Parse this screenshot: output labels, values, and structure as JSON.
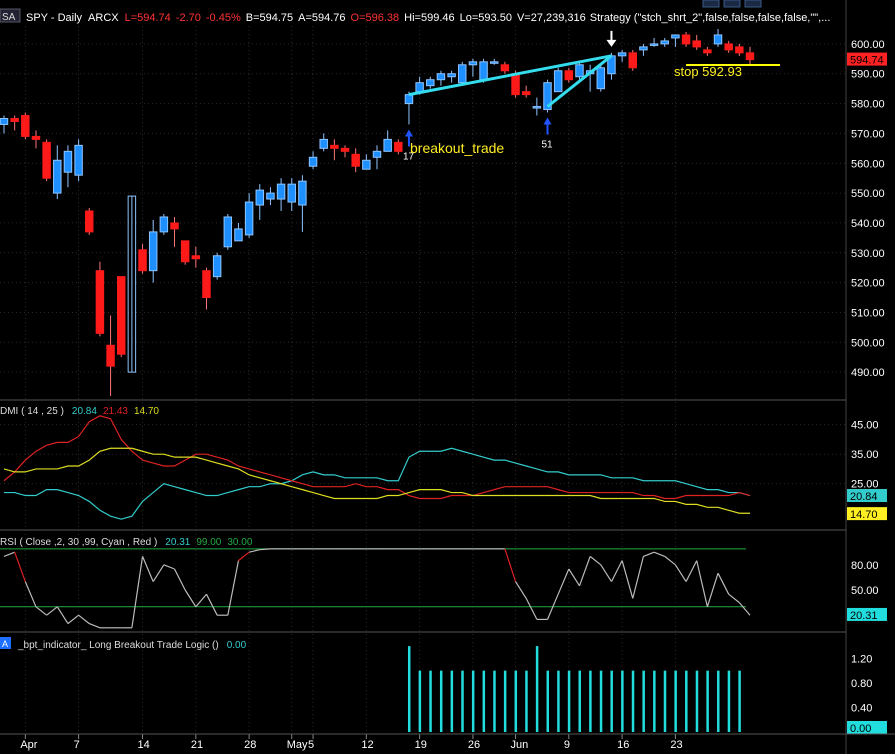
{
  "header": {
    "badge": "SA",
    "symbol": "SPY - Daily",
    "exchange": "ARCX",
    "last": "L=594.74",
    "change": "-2.70",
    "change_pct": "-0.45%",
    "bid": "B=594.75",
    "ask": "A=594.76",
    "open": "O=596.38",
    "high": "Hi=599.46",
    "low": "Lo=593.50",
    "volume": "V=27,239,316",
    "strategy": "Strategy (\"stch_shrt_2\",false,false,false,false,\"\",..."
  },
  "colors": {
    "background": "#000000",
    "up_candle": "#1e8fff",
    "down_candle": "#ff1a1a",
    "grid": "#2a2a2a",
    "axis_text": "#ffffff",
    "trendline": "#33ddee",
    "stop_line": "#ffff00",
    "dmi_plus": "#33cccc",
    "dmi_minus": "#dd2222",
    "adx": "#dddd22",
    "rsi": "#bbbbbb",
    "rsi_high": "#dd2222",
    "rsi_level_high": "#22aa44",
    "rsi_level_low": "#22aa44",
    "histogram": "#22dddd"
  },
  "annotations": {
    "breakout_label": "breakout_trade",
    "stop_label": "stop 592.93",
    "entry1_label": "17",
    "entry2_label": "51"
  },
  "price_axis": {
    "ticks": [
      "600.00",
      "590.00",
      "580.00",
      "570.00",
      "560.00",
      "550.00",
      "540.00",
      "530.00",
      "520.00",
      "510.00",
      "500.00",
      "490.00"
    ],
    "last_badge": "594.74"
  },
  "dmi_panel": {
    "title": "DMI ( 14 , 25 )",
    "v1": "20.84",
    "v2": "21.43",
    "v3": "14.70",
    "ticks": [
      "45.00",
      "35.00",
      "25.00"
    ],
    "badge1": "20.84",
    "badge2": "14.70"
  },
  "rsi_panel": {
    "title": "RSI ( Close ,2, 30 ,99, Cyan , Red )",
    "v1": "20.31",
    "v2": "99.00",
    "v3": "30.00",
    "ticks": [
      "80.00",
      "50.00"
    ],
    "badge": "20.31"
  },
  "bpt_panel": {
    "badge": "A",
    "title": "_bpt_indicator_ Long Breakout Trade Logic ()",
    "value": "0.00",
    "ticks": [
      "1.20",
      "0.80",
      "0.40"
    ],
    "badge_value": "0.00"
  },
  "x_axis": {
    "ticks": [
      "Apr",
      "7",
      "14",
      "21",
      "28",
      "May",
      "5",
      "12",
      "19",
      "26",
      "Jun",
      "9",
      "16",
      "23"
    ]
  },
  "chart_data": {
    "type": "candlestick",
    "ylim": [
      482,
      606
    ],
    "candles": [
      {
        "o": 573,
        "h": 576,
        "l": 570,
        "c": 575
      },
      {
        "o": 575,
        "h": 576,
        "l": 571,
        "c": 574
      },
      {
        "o": 576,
        "h": 577,
        "l": 568,
        "c": 569
      },
      {
        "o": 569,
        "h": 571,
        "l": 565,
        "c": 568
      },
      {
        "o": 567,
        "h": 568,
        "l": 554,
        "c": 555
      },
      {
        "o": 550,
        "h": 566,
        "l": 548,
        "c": 561
      },
      {
        "o": 557,
        "h": 566,
        "l": 552,
        "c": 564
      },
      {
        "o": 556,
        "h": 568,
        "l": 554,
        "c": 566
      },
      {
        "o": 544,
        "h": 545,
        "l": 536,
        "c": 537
      },
      {
        "o": 524,
        "h": 527,
        "l": 502,
        "c": 503
      },
      {
        "o": 499,
        "h": 509,
        "l": 482,
        "c": 492
      },
      {
        "o": 522,
        "h": 522,
        "l": 495,
        "c": 496
      },
      {
        "o": 490,
        "h": 549,
        "l": 490,
        "c": 549
      },
      {
        "o": 531,
        "h": 533,
        "l": 523,
        "c": 524
      },
      {
        "o": 524,
        "h": 541,
        "l": 520,
        "c": 537
      },
      {
        "o": 537,
        "h": 543,
        "l": 536,
        "c": 542
      },
      {
        "o": 540,
        "h": 542,
        "l": 532,
        "c": 538
      },
      {
        "o": 534,
        "h": 534,
        "l": 526,
        "c": 527
      },
      {
        "o": 529,
        "h": 532,
        "l": 525,
        "c": 528
      },
      {
        "o": 524,
        "h": 525,
        "l": 511,
        "c": 515
      },
      {
        "o": 522,
        "h": 530,
        "l": 521,
        "c": 529
      },
      {
        "o": 532,
        "h": 543,
        "l": 531,
        "c": 542
      },
      {
        "o": 534,
        "h": 540,
        "l": 534,
        "c": 538
      },
      {
        "o": 536,
        "h": 550,
        "l": 535,
        "c": 547
      },
      {
        "o": 546,
        "h": 553,
        "l": 541,
        "c": 551
      },
      {
        "o": 548,
        "h": 552,
        "l": 546,
        "c": 550
      },
      {
        "o": 548,
        "h": 555,
        "l": 544,
        "c": 553
      },
      {
        "o": 547,
        "h": 555,
        "l": 544,
        "c": 553
      },
      {
        "o": 546,
        "h": 556,
        "l": 537,
        "c": 554
      },
      {
        "o": 559,
        "h": 564,
        "l": 558,
        "c": 562
      },
      {
        "o": 565,
        "h": 570,
        "l": 564,
        "c": 568
      },
      {
        "o": 566,
        "h": 568,
        "l": 561,
        "c": 565
      },
      {
        "o": 565,
        "h": 566,
        "l": 562,
        "c": 564
      },
      {
        "o": 563,
        "h": 565,
        "l": 557,
        "c": 559
      },
      {
        "o": 558,
        "h": 563,
        "l": 558,
        "c": 561
      },
      {
        "o": 562,
        "h": 566,
        "l": 558,
        "c": 564
      },
      {
        "o": 564,
        "h": 571,
        "l": 564,
        "c": 568
      },
      {
        "o": 567,
        "h": 568,
        "l": 563,
        "c": 564
      },
      {
        "o": 580,
        "h": 584,
        "l": 573,
        "c": 583
      },
      {
        "o": 584,
        "h": 589,
        "l": 583,
        "c": 587
      },
      {
        "o": 586,
        "h": 589,
        "l": 585,
        "c": 588
      },
      {
        "o": 588,
        "h": 591,
        "l": 586,
        "c": 590
      },
      {
        "o": 589,
        "h": 591,
        "l": 587,
        "c": 590
      },
      {
        "o": 587,
        "h": 594,
        "l": 586,
        "c": 593
      },
      {
        "o": 593,
        "h": 595,
        "l": 589,
        "c": 594
      },
      {
        "o": 588,
        "h": 595,
        "l": 587,
        "c": 594
      },
      {
        "o": 594,
        "h": 595,
        "l": 593,
        "c": 594
      },
      {
        "o": 593,
        "h": 594,
        "l": 590,
        "c": 591
      },
      {
        "o": 590,
        "h": 591,
        "l": 582,
        "c": 583
      },
      {
        "o": 584,
        "h": 586,
        "l": 582,
        "c": 583
      },
      {
        "o": 579,
        "h": 582,
        "l": 576,
        "c": 579
      },
      {
        "o": 578,
        "h": 588,
        "l": 577,
        "c": 587
      },
      {
        "o": 584,
        "h": 592,
        "l": 584,
        "c": 591
      },
      {
        "o": 591,
        "h": 592,
        "l": 587,
        "c": 588
      },
      {
        "o": 589,
        "h": 594,
        "l": 588,
        "c": 593
      },
      {
        "o": 590,
        "h": 593,
        "l": 584,
        "c": 591
      },
      {
        "o": 585,
        "h": 593,
        "l": 584,
        "c": 592
      },
      {
        "o": 590,
        "h": 597,
        "l": 588,
        "c": 596
      },
      {
        "o": 596,
        "h": 598,
        "l": 594,
        "c": 597
      },
      {
        "o": 597,
        "h": 598,
        "l": 591,
        "c": 592
      },
      {
        "o": 598,
        "h": 600,
        "l": 596,
        "c": 599
      },
      {
        "o": 600,
        "h": 602,
        "l": 599,
        "c": 600
      },
      {
        "o": 600,
        "h": 602,
        "l": 599,
        "c": 601
      },
      {
        "o": 602,
        "h": 603,
        "l": 599,
        "c": 603
      },
      {
        "o": 603,
        "h": 604,
        "l": 599,
        "c": 600
      },
      {
        "o": 601,
        "h": 603,
        "l": 598,
        "c": 599
      },
      {
        "o": 598,
        "h": 599,
        "l": 596,
        "c": 597
      },
      {
        "o": 600,
        "h": 605,
        "l": 599,
        "c": 603
      },
      {
        "o": 600,
        "h": 601,
        "l": 597,
        "c": 598
      },
      {
        "o": 599,
        "h": 600,
        "l": 596,
        "c": 597
      },
      {
        "o": 597,
        "h": 599,
        "l": 593,
        "c": 594.74
      }
    ],
    "dmi_plus": [
      22,
      22,
      21,
      21,
      23,
      23,
      22,
      21,
      19,
      16,
      14,
      13,
      14,
      19,
      22,
      25,
      24,
      23,
      22,
      21,
      21,
      22,
      23,
      24,
      24,
      25,
      25,
      26,
      28,
      29,
      28,
      28,
      27,
      27,
      27,
      27,
      26,
      26,
      34,
      36,
      36,
      36,
      37,
      36,
      35,
      34,
      33,
      33,
      32,
      31,
      30,
      29,
      29,
      28,
      28,
      28,
      28,
      27,
      27,
      27,
      26,
      26,
      26,
      26,
      25,
      24,
      23,
      23,
      22,
      22,
      21
    ],
    "dmi_minus": [
      26,
      29,
      33,
      36,
      38,
      39,
      39,
      41,
      46,
      48,
      47,
      40,
      36,
      33,
      32,
      31,
      31,
      33,
      35,
      35,
      34,
      33,
      31,
      30,
      29,
      28,
      27,
      26,
      25,
      24,
      24,
      24,
      24,
      25,
      24,
      24,
      23,
      23,
      21,
      20,
      20,
      20,
      21,
      21,
      21,
      22,
      23,
      24,
      24,
      24,
      24,
      24,
      23,
      22,
      22,
      22,
      22,
      22,
      22,
      22,
      21,
      21,
      20,
      20,
      21,
      21,
      21,
      21,
      21,
      22,
      21
    ],
    "adx": [
      30,
      29,
      29,
      30,
      30,
      30,
      31,
      31,
      33,
      36,
      37,
      37,
      37,
      36,
      35,
      35,
      34,
      34,
      34,
      33,
      32,
      31,
      30,
      28,
      27,
      26,
      25,
      24,
      23,
      22,
      21,
      20,
      20,
      20,
      20,
      20,
      21,
      21,
      22,
      23,
      23,
      23,
      22,
      22,
      21,
      21,
      21,
      21,
      21,
      21,
      21,
      21,
      21,
      21,
      21,
      21,
      20,
      20,
      20,
      20,
      20,
      20,
      19,
      19,
      18,
      18,
      17,
      17,
      16,
      15,
      15
    ],
    "rsi": [
      90,
      95,
      60,
      30,
      20,
      30,
      10,
      20,
      10,
      5,
      5,
      5,
      5,
      90,
      60,
      80,
      75,
      50,
      30,
      45,
      20,
      20,
      85,
      95,
      98,
      99,
      99,
      99,
      99,
      99,
      99,
      99,
      99,
      99,
      99,
      99,
      99,
      99,
      99,
      99,
      99,
      99,
      99,
      99,
      99,
      99,
      99,
      99,
      60,
      40,
      15,
      15,
      45,
      75,
      55,
      90,
      80,
      60,
      85,
      40,
      90,
      95,
      90,
      80,
      60,
      85,
      30,
      70,
      45,
      35,
      20
    ],
    "bpt": [
      0,
      0,
      0,
      0,
      0,
      0,
      0,
      0,
      0,
      0,
      0,
      0,
      0,
      0,
      0,
      0,
      0,
      0,
      0,
      0,
      0,
      0,
      0,
      0,
      0,
      0,
      0,
      0,
      0,
      0,
      0,
      0,
      0,
      0,
      0,
      0,
      0,
      0,
      1.4,
      1.0,
      1.0,
      1.0,
      1.0,
      1.0,
      1.0,
      1.0,
      1.0,
      1.0,
      1.0,
      1.0,
      1.4,
      1.0,
      1.0,
      1.0,
      1.0,
      1.0,
      1.0,
      1.0,
      1.0,
      1.0,
      1.0,
      1.0,
      1.0,
      1.0,
      1.0,
      1.0,
      1.0,
      1.0,
      1.0,
      1.0,
      0
    ],
    "dmi_ylim": [
      10,
      52
    ],
    "rsi_ylim": [
      0,
      100
    ],
    "bpt_ylim": [
      0,
      1.5
    ],
    "rsi_levels": [
      99,
      30
    ],
    "entries": [
      {
        "index": 38,
        "label": "17"
      },
      {
        "index": 51,
        "label": "51"
      }
    ],
    "exit_index": 57,
    "trendlines": [
      {
        "from": [
          38,
          583
        ],
        "to": [
          57,
          596
        ]
      },
      {
        "from": [
          51,
          579
        ],
        "to": [
          57,
          596
        ]
      }
    ],
    "stop_level": 592.93,
    "stop_from_index": 64,
    "stop_to_index": 70
  }
}
